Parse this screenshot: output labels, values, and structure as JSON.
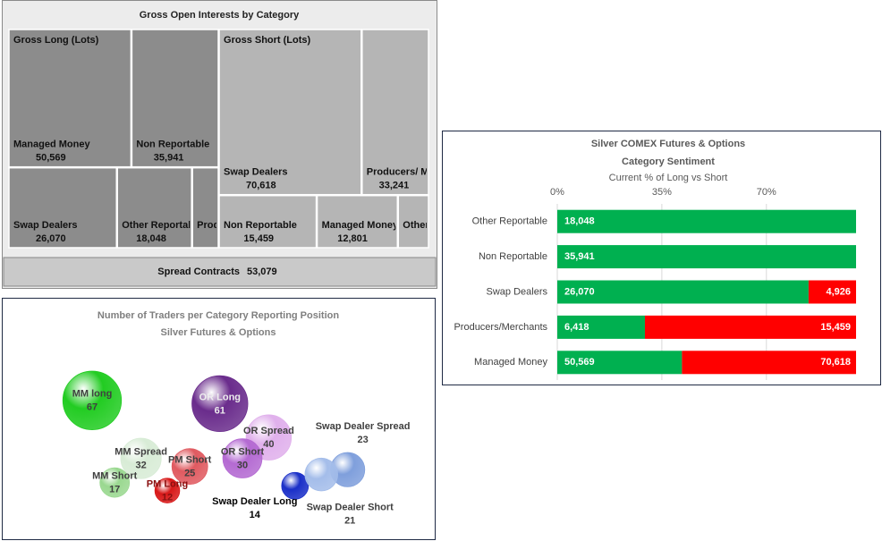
{
  "chart_data": [
    {
      "type": "treemap",
      "title": "Gross Open Interests by Category",
      "groups": [
        {
          "name": "Gross Long (Lots)",
          "color": "#8c8c8c",
          "categories": [
            "Managed Money",
            "Non Reportable",
            "Swap Dealers",
            "Other Reportable",
            "Producers/..."
          ],
          "values": [
            50569,
            35941,
            26070,
            18048,
            6418
          ],
          "value_labels": [
            "50,569",
            "35,941",
            "26,070",
            "18,048",
            null
          ]
        },
        {
          "name": "Gross Short (Lots)",
          "color": "#b5b5b5",
          "categories": [
            "Swap Dealers",
            "Producers/ Merchants",
            "Non Reportable",
            "Managed Money",
            "Other r..."
          ],
          "values": [
            70618,
            33241,
            15459,
            12801,
            4900
          ],
          "value_labels": [
            "70,618",
            "33,241",
            "15,459",
            "12,801",
            null
          ]
        }
      ],
      "spread": {
        "name": "Spread Contracts",
        "value": 53079,
        "value_label": "53,079",
        "color": "#c9c9c9"
      }
    },
    {
      "type": "bubble",
      "title": [
        "Number of Traders per Category Reporting Position",
        "Silver Futures & Options"
      ],
      "categories": [
        "MM long",
        "OR Long",
        "OR Spread",
        "OR Short",
        "MM Spread",
        "PM Short",
        "MM Short",
        "PM Long",
        "Swap Dealer Spread",
        "Swap Dealer Long",
        "Swap Dealer Short"
      ],
      "x": [
        1.5,
        4.9,
        6.2,
        5.5,
        2.8,
        4.1,
        2.1,
        3.5,
        8.3,
        6.9,
        7.6
      ],
      "y": [
        7.9,
        7.7,
        5.6,
        4.3,
        4.3,
        3.8,
        2.8,
        2.3,
        3.6,
        2.6,
        3.3
      ],
      "sizes": [
        67,
        61,
        40,
        30,
        32,
        25,
        17,
        12,
        23,
        14,
        21
      ],
      "colors": [
        "#22cc22",
        "#6a2c8c",
        "#e0b0ec",
        "#b46ad2",
        "#d8ecd6",
        "#e05a60",
        "#9ad890",
        "#d81818",
        "#7f9fdc",
        "#1a2fc8",
        "#a4bdea"
      ],
      "xlim": [
        0,
        10
      ],
      "ylim": [
        0,
        10
      ]
    },
    {
      "type": "stacked_bar",
      "stacking": "percent",
      "title": [
        "Silver COMEX Futures & Options",
        "Category Sentiment"
      ],
      "subtitle": "Current % of Long vs Short",
      "categories": [
        "Other Reportable",
        "Non Reportable",
        "Swap Dealers",
        "Producers/Merchants",
        "Managed Money"
      ],
      "series": [
        {
          "name": "Long",
          "color": "#00b050",
          "values": [
            18048,
            35941,
            26070,
            6418,
            50569
          ],
          "value_labels": [
            "18,048",
            "35,941",
            "26,070",
            "6,418",
            "50,569"
          ]
        },
        {
          "name": "Short",
          "color": "#ff0000",
          "values": [
            0,
            0,
            4926,
            15459,
            70618
          ],
          "value_labels": [
            null,
            null,
            "4,926",
            "15,459",
            "70,618"
          ]
        }
      ],
      "xlim": [
        0,
        100
      ],
      "xticks": [
        {
          "value": 0,
          "label": "0%"
        },
        {
          "value": 35,
          "label": "35%"
        },
        {
          "value": 70,
          "label": "70%"
        }
      ],
      "grid": true
    }
  ]
}
